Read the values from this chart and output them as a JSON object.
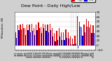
{
  "title": "Dew Point - Daily High/Low",
  "ylabel_left": "Milwaukee, WI",
  "background_color": "#d0d0d0",
  "plot_bg": "#ffffff",
  "high_color": "#dd0000",
  "low_color": "#0000cc",
  "dotted_line_color": "#888888",
  "categories": [
    "1/1",
    "1/3",
    "1/5",
    "1/7",
    "1/9",
    "1/11",
    "1/13",
    "1/15",
    "1/17",
    "1/19",
    "1/21",
    "1/23",
    "1/25",
    "1/27",
    "1/29",
    "1/31",
    "2/2",
    "2/4",
    "2/6",
    "2/8",
    "2/10",
    "2/12",
    "2/14",
    "2/16",
    "2/18",
    "2/20",
    "2/22",
    "2/24",
    "2/26",
    "2/28",
    "3/2",
    "3/4",
    "3/6",
    "3/8",
    "3/10"
  ],
  "high_values": [
    28,
    42,
    44,
    46,
    36,
    44,
    44,
    46,
    36,
    44,
    48,
    38,
    46,
    44,
    44,
    46,
    36,
    26,
    30,
    36,
    28,
    28,
    34,
    28,
    18,
    14,
    20,
    62,
    50,
    38,
    44,
    56,
    52,
    44,
    42
  ],
  "low_values": [
    16,
    32,
    34,
    36,
    22,
    32,
    28,
    30,
    22,
    32,
    36,
    26,
    36,
    30,
    28,
    32,
    18,
    8,
    12,
    18,
    12,
    12,
    16,
    14,
    2,
    2,
    4,
    -6,
    40,
    20,
    28,
    40,
    38,
    26,
    26
  ],
  "dotted_indices": [
    24,
    25,
    26,
    27
  ],
  "ylim": [
    -10,
    70
  ],
  "yticks": [
    -10,
    0,
    10,
    20,
    30,
    40,
    50,
    60,
    70
  ],
  "title_fontsize": 4.5,
  "tick_fontsize": 3.0,
  "legend_fontsize": 3.0,
  "bar_width": 0.38
}
